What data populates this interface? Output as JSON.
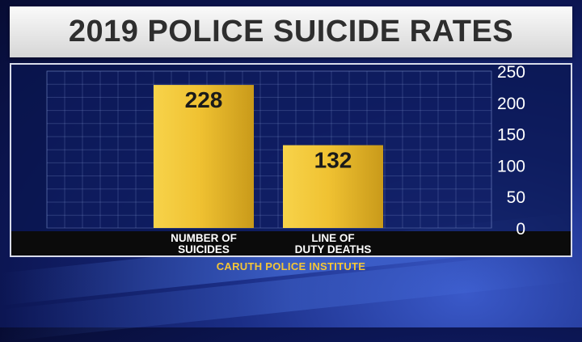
{
  "title": "2019 POLICE SUICIDE RATES",
  "source": "CARUTH POLICE INSTITUTE",
  "chart_data": {
    "type": "bar",
    "categories": [
      [
        "NUMBER OF",
        "SUICIDES"
      ],
      [
        "LINE OF",
        "DUTY DEATHS"
      ]
    ],
    "values": [
      228,
      132
    ],
    "value_labels": [
      "228",
      "132"
    ],
    "yticks": [
      0,
      50,
      100,
      150,
      200,
      250
    ],
    "ytick_labels": [
      "0",
      "50",
      "100",
      "150",
      "200",
      "250"
    ],
    "ylim": [
      0,
      250
    ],
    "y_axis_side": "right",
    "grid": true,
    "bar_color": "#f0c232"
  }
}
